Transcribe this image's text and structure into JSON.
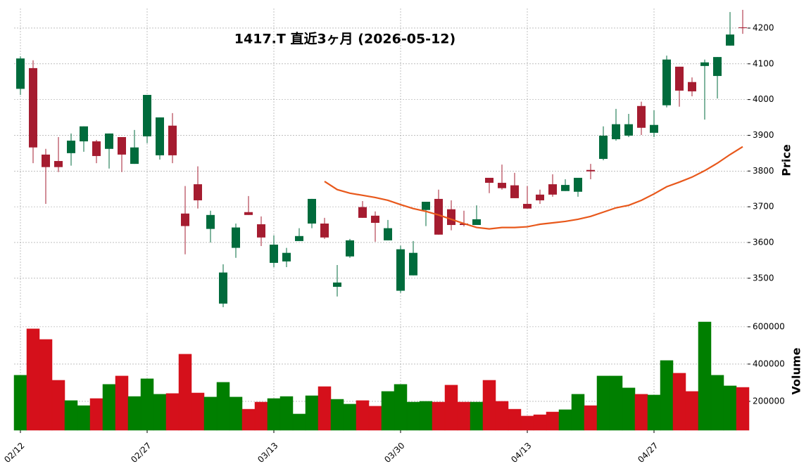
{
  "chart_data": {
    "type": "candlestick",
    "title": "1417.T  直近3ヶ月  (2026-05-12)",
    "ylabel": "Price",
    "y2label": "Volume",
    "categories": [
      "02/12",
      null,
      null,
      null,
      null,
      null,
      null,
      null,
      null,
      null,
      "02/27",
      null,
      null,
      null,
      null,
      null,
      null,
      null,
      null,
      null,
      "03/13",
      null,
      null,
      null,
      null,
      null,
      null,
      null,
      null,
      null,
      "03/30",
      null,
      null,
      null,
      null,
      null,
      null,
      null,
      null,
      null,
      "04/13",
      null,
      null,
      null,
      null,
      null,
      null,
      null,
      null,
      null,
      "04/27",
      null,
      null,
      null,
      null,
      null,
      null,
      null
    ],
    "open": [
      4030,
      4088,
      3846,
      3828,
      3850,
      3883,
      3883,
      3862,
      3895,
      3820,
      3897,
      3844,
      3927,
      3681,
      3763,
      3638,
      3429,
      3585,
      3685,
      3651,
      3543,
      3547,
      3604,
      3653,
      3653,
      3476,
      3561,
      3699,
      3675,
      3606,
      3465,
      3508,
      3691,
      3722,
      3693,
      3653,
      3649,
      3781,
      3767,
      3760,
      3708,
      3734,
      3763,
      3744,
      3742,
      3803,
      3834,
      3889,
      3899,
      3982,
      3907,
      3984,
      4092,
      4049,
      4094,
      4066,
      4151,
      4202
    ],
    "high": [
      4121,
      4110,
      3862,
      3895,
      3905,
      3925,
      3887,
      3905,
      3895,
      3915,
      4013,
      3950,
      3962,
      3758,
      3813,
      3689,
      3539,
      3653,
      3730,
      3673,
      3620,
      3585,
      3640,
      3722,
      3669,
      3537,
      3610,
      3716,
      3687,
      3663,
      3591,
      3604,
      3714,
      3748,
      3718,
      3689,
      3704,
      3781,
      3818,
      3795,
      3758,
      3748,
      3791,
      3777,
      3781,
      3820,
      3925,
      3974,
      3960,
      3994,
      3970,
      4123,
      4092,
      4062,
      4112,
      4119,
      4245,
      4251
    ],
    "low": [
      4013,
      3822,
      3708,
      3797,
      3815,
      3854,
      3822,
      3807,
      3797,
      3820,
      3878,
      3832,
      3822,
      3567,
      3695,
      3600,
      3419,
      3557,
      3677,
      3590,
      3531,
      3531,
      3604,
      3640,
      3610,
      3449,
      3557,
      3669,
      3602,
      3606,
      3459,
      3508,
      3646,
      3622,
      3634,
      3645,
      3649,
      3738,
      3748,
      3724,
      3695,
      3708,
      3728,
      3744,
      3728,
      3777,
      3830,
      3885,
      3895,
      3901,
      3895,
      3978,
      3980,
      4009,
      3944,
      4003,
      4151,
      4184
    ],
    "close": [
      4115,
      3866,
      3811,
      3811,
      3885,
      3925,
      3842,
      3905,
      3846,
      3866,
      4013,
      3950,
      3844,
      3646,
      3718,
      3677,
      3516,
      3642,
      3677,
      3614,
      3594,
      3571,
      3618,
      3722,
      3614,
      3488,
      3606,
      3669,
      3655,
      3640,
      3581,
      3571,
      3714,
      3622,
      3649,
      3649,
      3665,
      3767,
      3752,
      3724,
      3695,
      3718,
      3734,
      3761,
      3781,
      3799,
      3899,
      3931,
      3931,
      3921,
      3929,
      4112,
      4025,
      4023,
      4104,
      4119,
      4182,
      4200
    ],
    "volume": [
      340000,
      589000,
      532000,
      313000,
      204000,
      177000,
      215000,
      291000,
      336000,
      226000,
      321000,
      238000,
      242000,
      453000,
      245000,
      223000,
      302000,
      223000,
      158000,
      196000,
      215000,
      226000,
      132000,
      230000,
      279000,
      211000,
      185000,
      204000,
      174000,
      253000,
      291000,
      196000,
      200000,
      196000,
      287000,
      196000,
      196000,
      313000,
      200000,
      158000,
      121000,
      128000,
      143000,
      155000,
      238000,
      177000,
      336000,
      336000,
      272000,
      238000,
      234000,
      419000,
      351000,
      253000,
      626000,
      340000,
      283000,
      275000
    ],
    "ma": [
      null,
      null,
      null,
      null,
      null,
      null,
      null,
      null,
      null,
      null,
      null,
      null,
      null,
      null,
      null,
      null,
      null,
      null,
      null,
      null,
      null,
      null,
      null,
      null,
      3771,
      3748,
      3738,
      3732,
      3726,
      3718,
      3706,
      3695,
      3687,
      3677,
      3665,
      3653,
      3642,
      3638,
      3642,
      3642,
      3644,
      3651,
      3655,
      3659,
      3665,
      3673,
      3685,
      3697,
      3704,
      3718,
      3736,
      3756,
      3769,
      3783,
      3801,
      3822,
      3846,
      3868
    ],
    "ylim": [
      3413,
      4255
    ],
    "yticks": [
      3500,
      3600,
      3700,
      3800,
      3900,
      4000,
      4100,
      4200
    ],
    "y2lim": [
      45000,
      675000
    ],
    "y2ticks": [
      200000,
      400000,
      600000
    ],
    "grid": true,
    "colors": {
      "up": "#006b3c",
      "down": "#a51c30",
      "volume_up": "#007f00",
      "volume_down": "#d5101b",
      "ma": "#e8581b"
    }
  }
}
